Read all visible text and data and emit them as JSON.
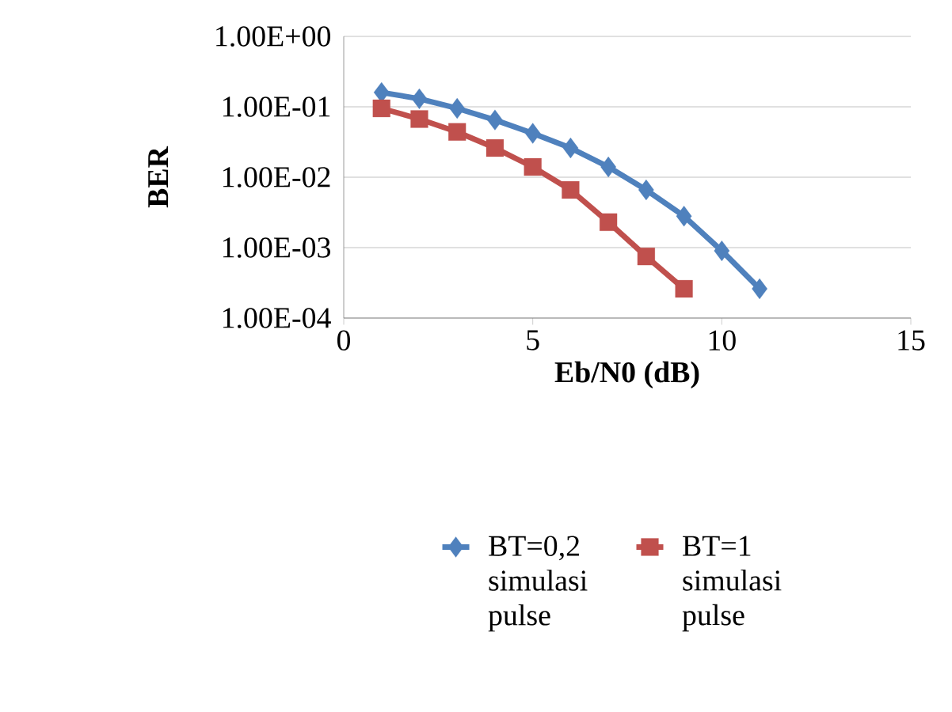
{
  "chart_data": {
    "type": "line",
    "xlabel": "Eb/N0 (dB)",
    "ylabel": "BER",
    "log": "y",
    "grid": "y",
    "legend": "bottom",
    "xlim": [
      0,
      15
    ],
    "xticks": [
      0,
      5,
      10,
      15
    ],
    "ylim": [
      0.0001,
      1
    ],
    "yticks": [
      {
        "value": 1,
        "label": "1.00E+00"
      },
      {
        "value": 0.1,
        "label": "1.00E-01"
      },
      {
        "value": 0.01,
        "label": "1.00E-02"
      },
      {
        "value": 0.001,
        "label": "1.00E-03"
      },
      {
        "value": 0.0001,
        "label": "1.00E-04"
      }
    ],
    "series": [
      {
        "name": "BT=0,2 simulasi pulse",
        "color": "#4f81bd",
        "marker": "diamond",
        "x": [
          1,
          2,
          3,
          4,
          5,
          6,
          7,
          8,
          9,
          10,
          11
        ],
        "values": [
          0.16,
          0.13,
          0.095,
          0.065,
          0.042,
          0.026,
          0.014,
          0.0066,
          0.0028,
          0.0009,
          0.00026
        ]
      },
      {
        "name": "BT=1 simulasi pulse",
        "color": "#c0504d",
        "marker": "square",
        "x": [
          1,
          2,
          3,
          4,
          5,
          6,
          7,
          8,
          9
        ],
        "values": [
          0.095,
          0.067,
          0.044,
          0.026,
          0.014,
          0.0066,
          0.0023,
          0.00075,
          0.00026
        ]
      }
    ]
  }
}
